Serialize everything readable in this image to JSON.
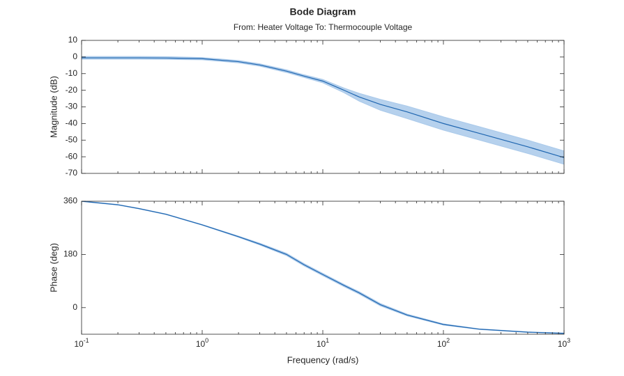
{
  "chart_data": [
    {
      "type": "line",
      "title": "Bode Diagram",
      "subtitle": "From: Heater Voltage  To: Thermocouple Voltage",
      "ylabel": "Magnitude (dB)",
      "xscale": "log",
      "xlim": [
        0.1,
        1000
      ],
      "ylim": [
        -70,
        10
      ],
      "yticks": [
        10,
        0,
        -10,
        -20,
        -30,
        -40,
        -50,
        -60,
        -70
      ],
      "x": [
        0.1,
        0.2,
        0.3,
        0.5,
        1,
        2,
        3,
        5,
        7,
        10,
        15,
        20,
        30,
        50,
        100,
        200,
        500,
        1000
      ],
      "series": [
        {
          "color": "#1f66b0",
          "band_color": "#a9c9ea",
          "values": [
            -0.5,
            -0.5,
            -0.5,
            -0.6,
            -1,
            -2.8,
            -4.8,
            -8.5,
            -11.5,
            -14.5,
            -20,
            -24,
            -28.5,
            -33,
            -40,
            -46,
            -54,
            -60.5
          ],
          "lower": [
            -1.3,
            -1.3,
            -1.3,
            -1.4,
            -1.7,
            -3.5,
            -5.5,
            -9.3,
            -12.3,
            -15.5,
            -21.5,
            -26.5,
            -32,
            -37,
            -44,
            -50,
            -58,
            -64.5
          ],
          "upper": [
            0.3,
            0.3,
            0.3,
            0.2,
            -0.3,
            -2.1,
            -4.1,
            -7.7,
            -10.7,
            -13.5,
            -18.7,
            -21.8,
            -25.5,
            -29.5,
            -36,
            -42,
            -50,
            -56.5
          ]
        }
      ]
    },
    {
      "type": "line",
      "ylabel": "Phase (deg)",
      "xlabel": "Frequency (rad/s)",
      "xscale": "log",
      "xlim": [
        0.1,
        1000
      ],
      "ylim": [
        -90,
        360
      ],
      "xticks": [
        {
          "value": 0.1,
          "label": "10",
          "exponent": "-1"
        },
        {
          "value": 1,
          "label": "10",
          "exponent": "0"
        },
        {
          "value": 10,
          "label": "10",
          "exponent": "1"
        },
        {
          "value": 100,
          "label": "10",
          "exponent": "2"
        },
        {
          "value": 1000,
          "label": "10",
          "exponent": "3"
        }
      ],
      "yticks": [
        0,
        180,
        360
      ],
      "x": [
        0.1,
        0.2,
        0.3,
        0.5,
        1,
        2,
        3,
        5,
        7,
        10,
        15,
        20,
        30,
        50,
        100,
        200,
        500,
        1000
      ],
      "series": [
        {
          "color": "#1f66b0",
          "band_color": "#a9c9ea",
          "values": [
            360,
            348,
            335,
            316,
            280,
            240,
            215,
            180,
            145,
            112,
            75,
            50,
            10,
            -25,
            -57,
            -73,
            -83,
            -87
          ],
          "lower": [
            359,
            347,
            334,
            315,
            279,
            238,
            212,
            176,
            141,
            108,
            71,
            46,
            6,
            -28,
            -59,
            -74,
            -84,
            -88
          ],
          "upper": [
            361,
            349,
            336,
            317,
            281,
            242,
            218,
            184,
            149,
            116,
            79,
            54,
            14,
            -22,
            -55,
            -72,
            -82,
            -86
          ]
        }
      ]
    }
  ]
}
